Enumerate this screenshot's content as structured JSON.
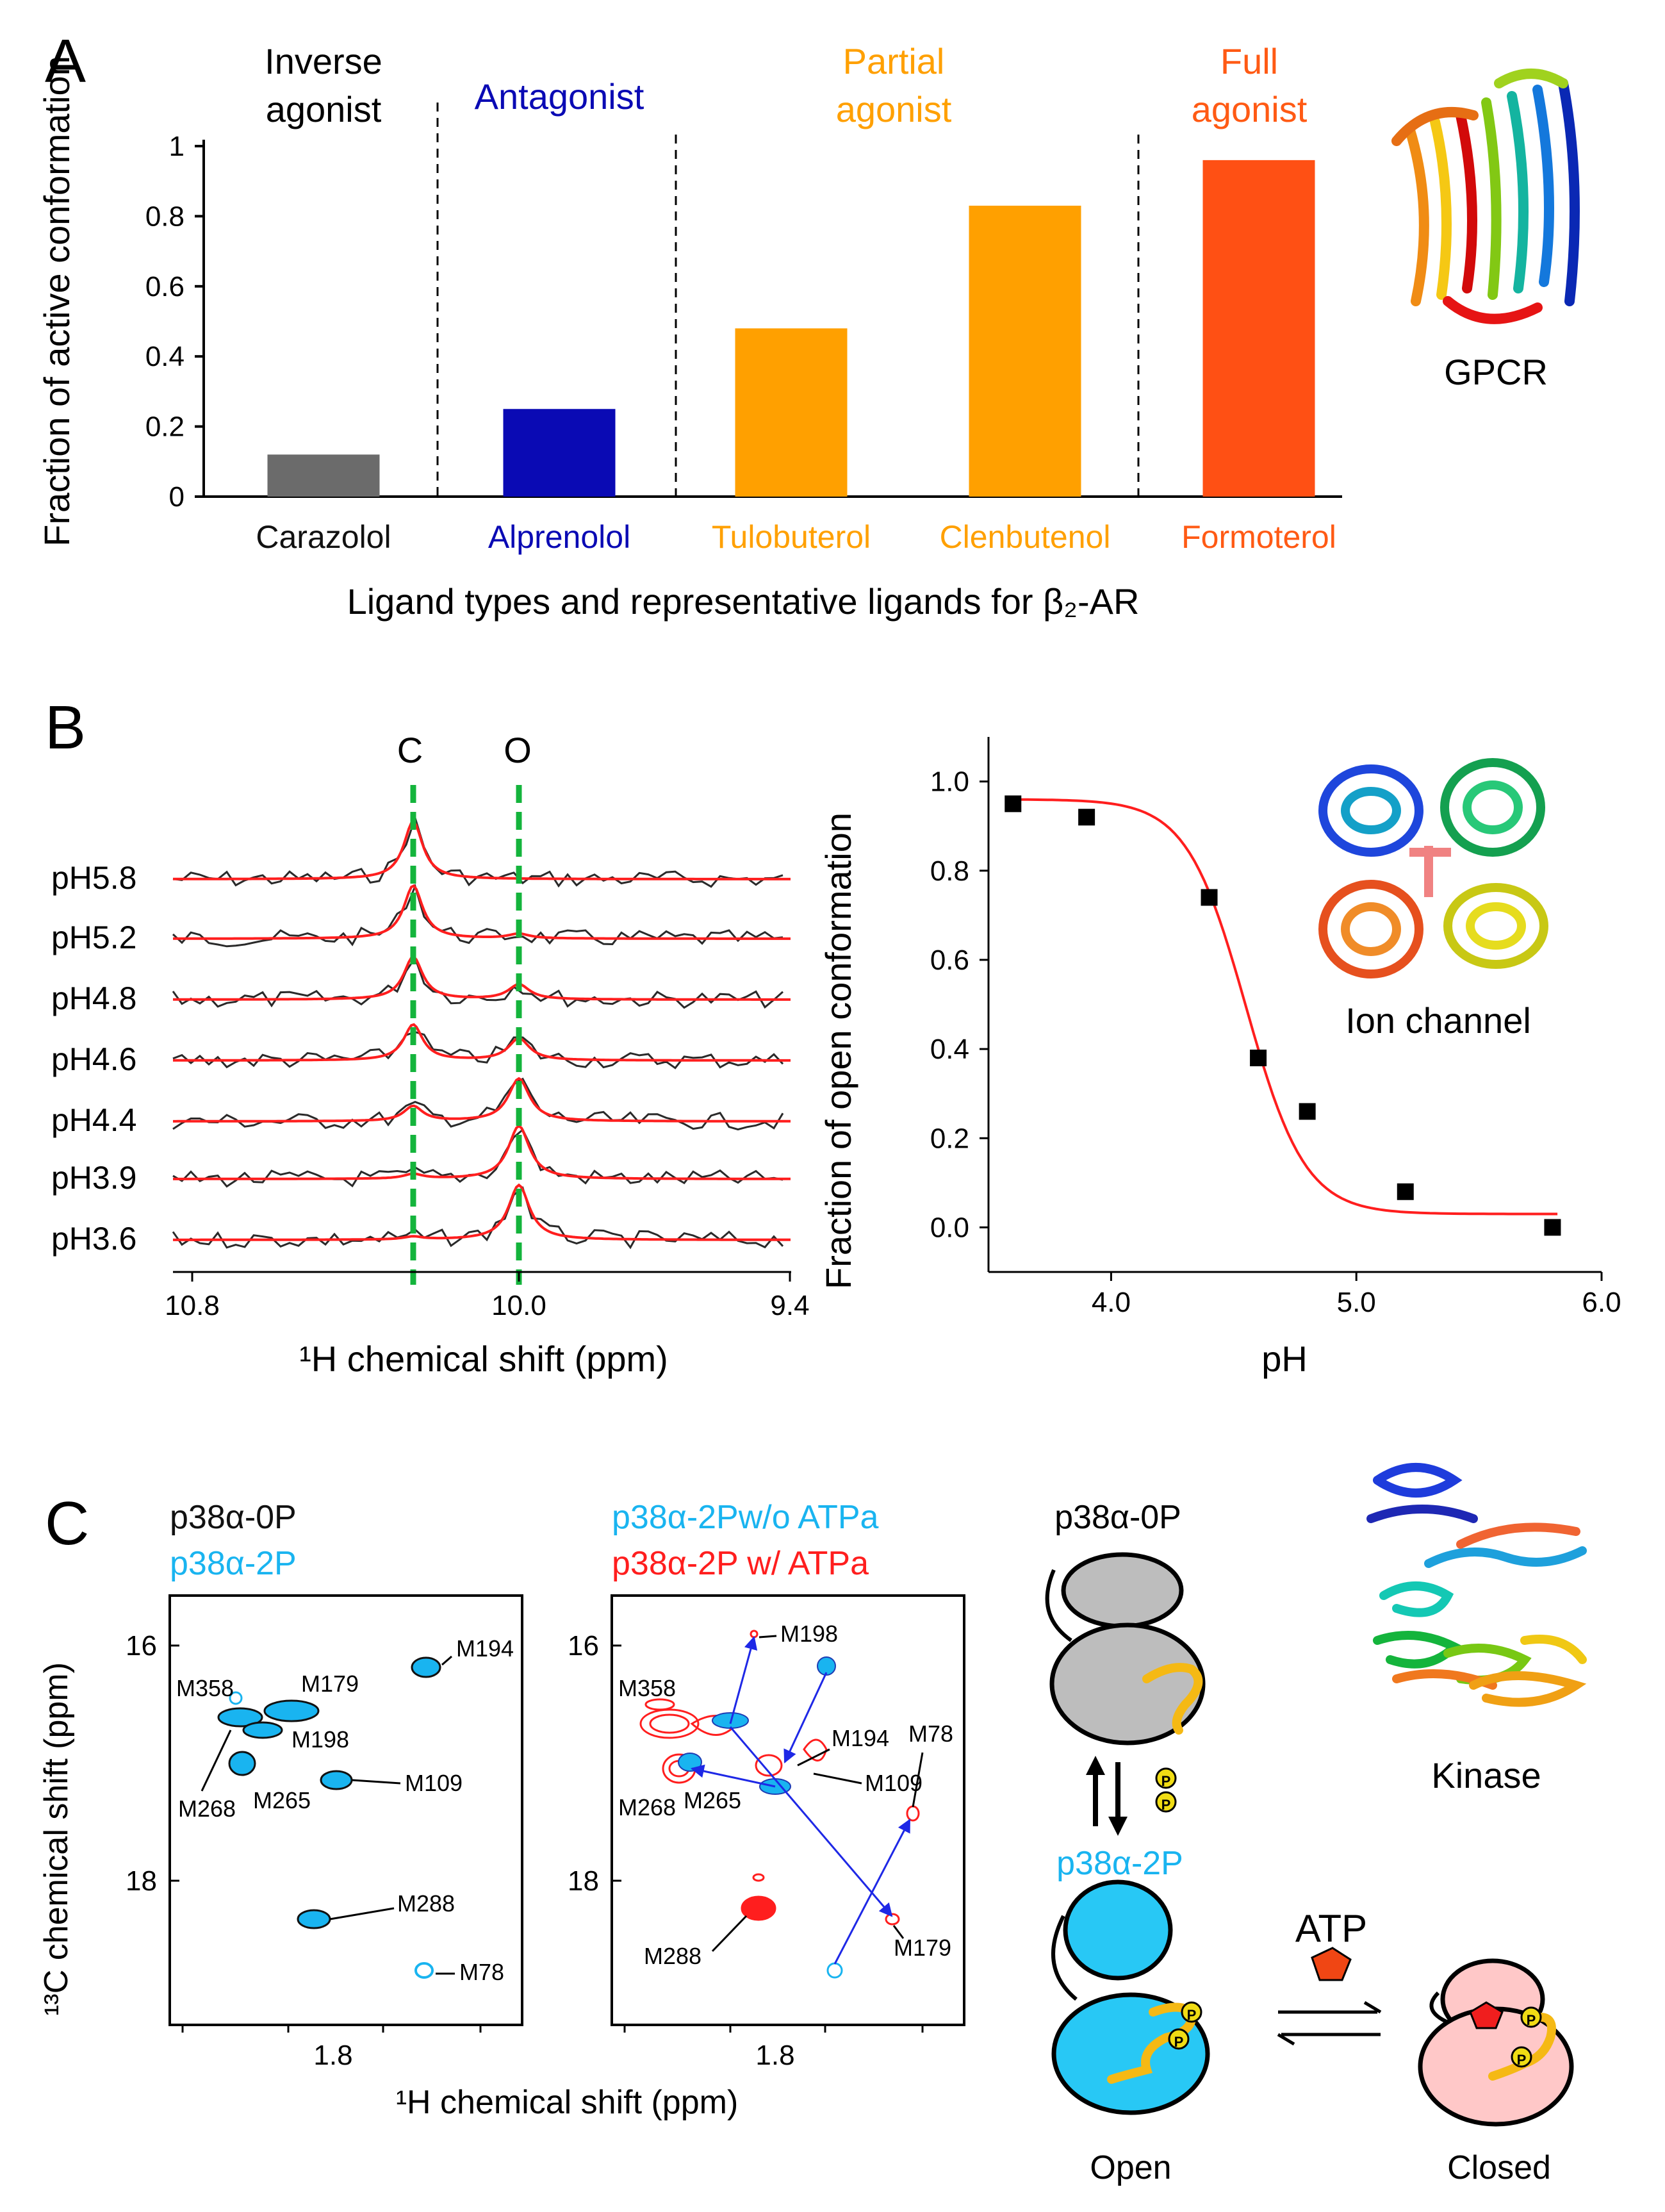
{
  "panels": {
    "A": {
      "label": "A",
      "categories": [
        {
          "title_lines": [
            "Inverse",
            "agonist"
          ],
          "color": "#000000"
        },
        {
          "title_lines": [
            "Antagonist"
          ],
          "color": "#0a0ab4"
        },
        {
          "title_lines": [
            "Partial",
            "agonist"
          ],
          "color": "#ffa000"
        },
        {
          "title_lines": [
            "Full",
            "agonist"
          ],
          "color": "#ff5a14"
        }
      ],
      "protein_label": "GPCR"
    },
    "B": {
      "label": "B",
      "state_labels": {
        "closed": "C",
        "open": "O"
      },
      "spectra_xlabel": "¹H chemical shift (ppm)",
      "spectra_ticks": [
        "10.8",
        "10.0",
        "9.4"
      ],
      "ph_labels": [
        "pH5.8",
        "pH5.2",
        "pH4.8",
        "pH4.6",
        "pH4.4",
        "pH3.9",
        "pH3.6"
      ],
      "protein_label": "Ion channel"
    },
    "C": {
      "label": "C",
      "ylabel": "¹³C chemical shift (ppm)",
      "xlabel": "¹H chemical shift (ppm)",
      "left_legend": [
        {
          "text": "p38α-0P",
          "color": "#111111"
        },
        {
          "text": "p38α-2P",
          "color": "#19b4f0"
        }
      ],
      "right_legend": [
        {
          "text": "p38α-2Pw/o ATPa",
          "color": "#19b4f0"
        },
        {
          "text": "p38α-2P w/ ATPa",
          "color": "#ff1e1e"
        }
      ],
      "y_ticks": [
        "16",
        "18"
      ],
      "x_tick": "1.8",
      "left_peaks": [
        "M194",
        "M358",
        "M179",
        "M198",
        "M109",
        "M268",
        "M265",
        "M288",
        "M78"
      ],
      "right_peaks": [
        "M198",
        "M358",
        "M194",
        "M78",
        "M109",
        "M268",
        "M265",
        "M179",
        "M288"
      ],
      "scheme": {
        "top_state": "p38α-0P",
        "bottom_state": "p38α-2P",
        "phospho_symbol": "P",
        "ligand": "ATP",
        "open_label": "Open",
        "closed_label": "Closed"
      },
      "protein_label": "Kinase"
    }
  },
  "chart_data": [
    {
      "type": "bar",
      "title": "",
      "xlabel": "Ligand types and representative ligands for β₂-AR",
      "ylabel": "Fraction of active conformation",
      "ylim": [
        0,
        1
      ],
      "yticks": [
        "0",
        "0.2",
        "0.4",
        "0.6",
        "0.8",
        "1"
      ],
      "categories": [
        "Carazolol",
        "Alprenolol",
        "Tulobuterol",
        "Clenbutenol",
        "Formoterol"
      ],
      "values": [
        0.12,
        0.25,
        0.48,
        0.83,
        0.96
      ],
      "colors": [
        "#6b6b6b",
        "#0a0ab4",
        "#ffa000",
        "#ffa000",
        "#ff5014"
      ],
      "label_colors": [
        "#111111",
        "#0a0ab4",
        "#ffa000",
        "#ffa000",
        "#ff5a14"
      ]
    },
    {
      "type": "scatter",
      "title": "",
      "xlabel": "pH",
      "ylabel": "Fraction of open conformation",
      "xlim": [
        3.5,
        6.0
      ],
      "ylim": [
        -0.1,
        1.1
      ],
      "xticks": [
        "4.0",
        "5.0",
        "6.0"
      ],
      "yticks": [
        "0.0",
        "0.2",
        "0.4",
        "0.6",
        "0.8",
        "1.0"
      ],
      "x": [
        3.6,
        3.9,
        4.4,
        4.6,
        4.8,
        5.2,
        5.8
      ],
      "y": [
        0.95,
        0.92,
        0.74,
        0.38,
        0.26,
        0.08,
        0.0
      ],
      "fit": {
        "top": 0.96,
        "bottom": 0.03,
        "pKa": 4.55,
        "slope": 3.6,
        "color": "#ff1e1e"
      }
    }
  ]
}
